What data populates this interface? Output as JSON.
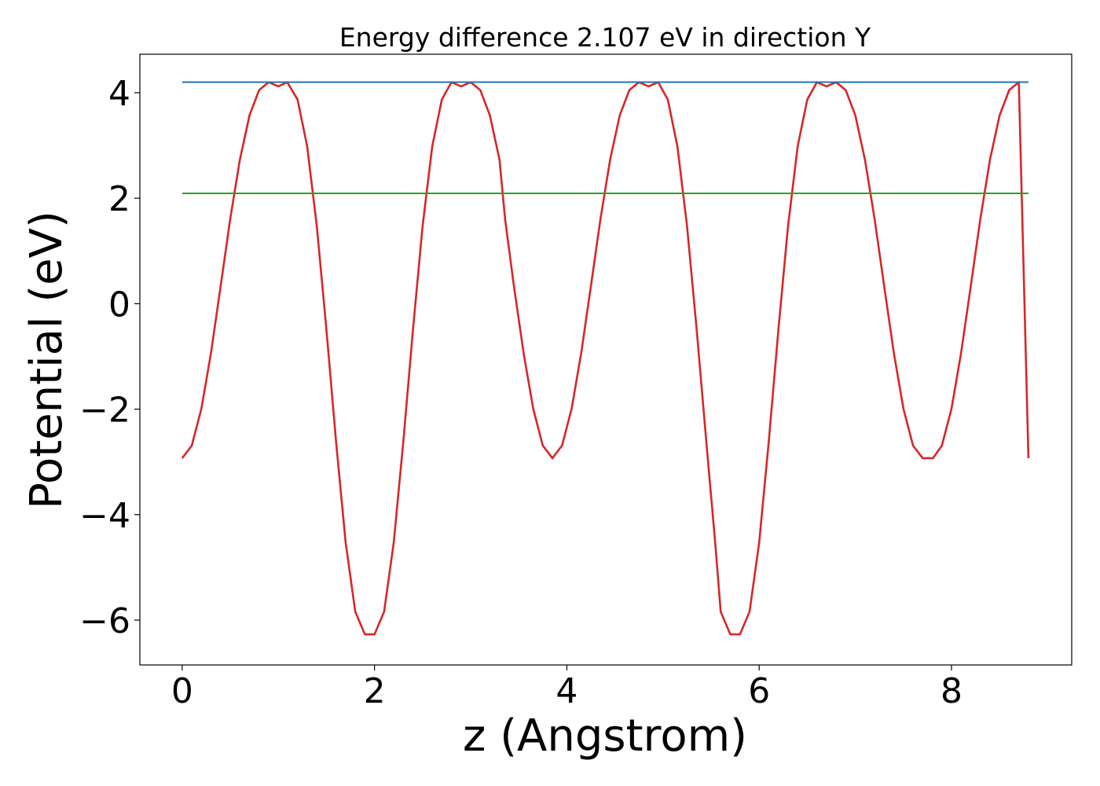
{
  "chart_data": {
    "type": "line",
    "title": "Energy difference 2.107 eV in direction Y",
    "xlabel": "z (Angstrom)",
    "ylabel": "Potential (eV)",
    "xlim": [
      -0.44,
      9.25
    ],
    "ylim": [
      -6.85,
      4.73
    ],
    "xticks": [
      0,
      2,
      4,
      6,
      8
    ],
    "xtick_labels": [
      "0",
      "2",
      "4",
      "6",
      "8"
    ],
    "yticks": [
      -6,
      -4,
      -2,
      0,
      2,
      4
    ],
    "ytick_labels": [
      "−6",
      "−4",
      "−2",
      "0",
      "2",
      "4"
    ],
    "grid": false,
    "legend": "none",
    "series": [
      {
        "color": "#d62728",
        "x": [
          0,
          0.1,
          0.2,
          0.3,
          0.4,
          0.5,
          0.6,
          0.7,
          0.8,
          0.9,
          1.0,
          1.0926,
          1.2,
          1.3,
          1.4,
          1.5,
          1.6,
          1.7,
          1.8,
          1.9,
          2.0,
          2.1,
          2.2,
          2.3,
          2.4,
          2.5,
          2.6,
          2.7,
          2.8,
          2.9,
          3.0,
          3.1,
          3.2,
          3.3,
          3.3574,
          3.45,
          3.55,
          3.65,
          3.75,
          3.85,
          3.95,
          4.05,
          4.15,
          4.25,
          4.35,
          4.45,
          4.55,
          4.65,
          4.75,
          4.85,
          4.95,
          5.05,
          5.15,
          5.25,
          5.35,
          5.45,
          5.5426,
          5.6,
          5.7,
          5.8,
          5.9,
          6.0,
          6.1,
          6.2,
          6.3,
          6.4,
          6.5,
          6.6,
          6.7,
          6.8,
          6.9,
          7.0,
          7.1,
          7.2,
          7.3,
          7.4,
          7.5,
          7.6,
          7.7,
          7.8074,
          7.9,
          8.0,
          8.1,
          8.2,
          8.3,
          8.4,
          8.5,
          8.6,
          8.7,
          8.8
        ],
        "y": [
          -2.93,
          -2.69,
          -1.99,
          -0.93,
          0.33,
          1.61,
          2.73,
          3.57,
          4.05,
          4.2,
          4.12,
          4.2,
          3.87,
          2.98,
          1.47,
          -0.49,
          -2.61,
          -4.53,
          -5.84,
          -6.27,
          -6.27,
          -5.84,
          -4.53,
          -2.61,
          -0.49,
          1.47,
          2.98,
          3.87,
          4.2,
          4.12,
          4.2,
          4.05,
          3.57,
          2.73,
          1.61,
          0.33,
          -0.93,
          -1.99,
          -2.69,
          -2.93,
          -2.69,
          -1.99,
          -0.93,
          0.33,
          1.61,
          2.73,
          3.57,
          4.05,
          4.2,
          4.12,
          4.2,
          3.87,
          2.98,
          1.47,
          -0.49,
          -2.61,
          -4.53,
          -5.84,
          -6.27,
          -6.27,
          -5.84,
          -4.53,
          -2.61,
          -0.49,
          1.47,
          2.98,
          3.87,
          4.2,
          4.12,
          4.2,
          4.05,
          3.57,
          2.73,
          1.61,
          0.33,
          -0.93,
          -1.99,
          -2.69,
          -2.93,
          -2.93,
          -2.69,
          -1.99,
          -0.93,
          0.33,
          1.61,
          2.73,
          3.57,
          4.05,
          4.2,
          -2.93
        ]
      },
      {
        "color": "#1f77b4",
        "x": [
          0,
          8.8
        ],
        "y": [
          4.2,
          4.2
        ]
      },
      {
        "color": "#2ca02c",
        "x": [
          0,
          8.8
        ],
        "y": [
          2.093,
          2.093
        ]
      }
    ]
  }
}
